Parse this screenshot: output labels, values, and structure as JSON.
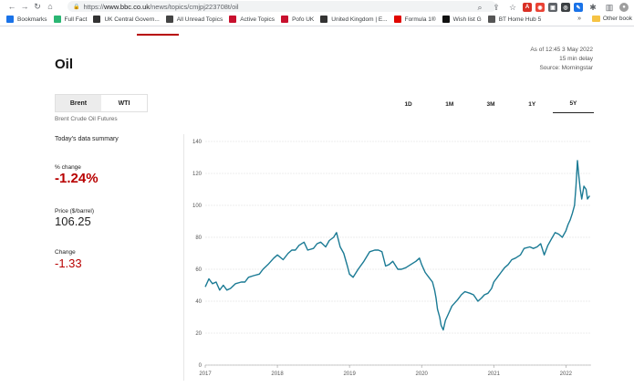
{
  "browser": {
    "url_prefix": "https://",
    "url_host": "www.bbc.co.uk",
    "url_path": "/news/topics/cmjpj223708t/oil",
    "bookmarks": [
      {
        "label": "Bookmarks",
        "color": "#1a73e8"
      },
      {
        "label": "Full Fact",
        "color": "#2bb673"
      },
      {
        "label": "UK Central Govern...",
        "color": "#333333"
      },
      {
        "label": "All Unread Topics",
        "color": "#444444"
      },
      {
        "label": "Active Topics",
        "color": "#c8102e"
      },
      {
        "label": "Pofo UK",
        "color": "#c8102e"
      },
      {
        "label": "United Kingdom | E...",
        "color": "#333333"
      },
      {
        "label": "Formula 1®",
        "color": "#e10600"
      },
      {
        "label": "Wish list G",
        "color": "#111111"
      },
      {
        "label": "BT Home Hub 5",
        "color": "#555555"
      }
    ],
    "more": "»",
    "other_bookmarks": "Other book"
  },
  "page": {
    "title": "Oil",
    "as_of": "As of 12:45 3 May 2022",
    "delay": "15 min delay",
    "source": "Source: Morningstar",
    "tabs": [
      "Brent",
      "WTI"
    ],
    "subtitle": "Brent Crude Oil Futures",
    "ranges": [
      "1D",
      "1M",
      "3M",
      "1Y",
      "5Y"
    ],
    "summary_heading": "Today's data summary",
    "pct_change_label": "% change",
    "pct_change_value": "-1.24%",
    "price_label": "Price ($/barrel)",
    "price_value": "106.25",
    "change_label": "Change",
    "change_value": "-1.33"
  },
  "colors": {
    "line": "#1a7a94",
    "negative": "#b80000",
    "accent": "#b80000"
  },
  "chart_data": {
    "type": "line",
    "title": "",
    "xlabel": "",
    "ylabel": "",
    "x_ticks": [
      "2017",
      "2018",
      "2019",
      "2020",
      "2021",
      "2022"
    ],
    "y_ticks": [
      0,
      20,
      40,
      60,
      80,
      100,
      120,
      140
    ],
    "ylim": [
      0,
      140
    ],
    "xlim": [
      2017.0,
      2022.35
    ],
    "grid": true,
    "series": [
      {
        "name": "",
        "x": [
          2017.0,
          2017.05,
          2017.1,
          2017.15,
          2017.2,
          2017.25,
          2017.3,
          2017.35,
          2017.42,
          2017.5,
          2017.55,
          2017.6,
          2017.67,
          2017.75,
          2017.8,
          2017.87,
          2017.95,
          2018.0,
          2018.08,
          2018.15,
          2018.2,
          2018.25,
          2018.3,
          2018.37,
          2018.42,
          2018.5,
          2018.55,
          2018.6,
          2018.67,
          2018.72,
          2018.78,
          2018.82,
          2018.87,
          2018.92,
          2018.97,
          2019.0,
          2019.05,
          2019.12,
          2019.2,
          2019.28,
          2019.35,
          2019.4,
          2019.45,
          2019.5,
          2019.55,
          2019.6,
          2019.67,
          2019.72,
          2019.78,
          2019.85,
          2019.92,
          2019.97,
          2020.0,
          2020.05,
          2020.1,
          2020.15,
          2020.18,
          2020.2,
          2020.22,
          2020.25,
          2020.27,
          2020.3,
          2020.33,
          2020.37,
          2020.42,
          2020.5,
          2020.55,
          2020.6,
          2020.67,
          2020.72,
          2020.78,
          2020.83,
          2020.87,
          2020.92,
          2020.97,
          2021.0,
          2021.05,
          2021.1,
          2021.15,
          2021.2,
          2021.25,
          2021.3,
          2021.37,
          2021.42,
          2021.5,
          2021.55,
          2021.6,
          2021.65,
          2021.7,
          2021.75,
          2021.8,
          2021.85,
          2021.9,
          2021.95,
          2022.0,
          2022.03,
          2022.06,
          2022.09,
          2022.12,
          2022.14,
          2022.16,
          2022.18,
          2022.2,
          2022.22,
          2022.25,
          2022.28,
          2022.3,
          2022.33
        ],
        "y": [
          49,
          54,
          51,
          52,
          47,
          50,
          47,
          48,
          51,
          52,
          52,
          55,
          56,
          57,
          60,
          63,
          67,
          69,
          66,
          70,
          72,
          72,
          75,
          77,
          72,
          73,
          76,
          77,
          74,
          78,
          80,
          83,
          74,
          70,
          62,
          57,
          55,
          60,
          65,
          71,
          72,
          72,
          71,
          62,
          63,
          65,
          60,
          60,
          61,
          63,
          65,
          67,
          63,
          58,
          55,
          52,
          47,
          42,
          35,
          30,
          25,
          22,
          28,
          32,
          37,
          41,
          44,
          46,
          45,
          44,
          40,
          42,
          44,
          45,
          48,
          52,
          55,
          58,
          61,
          63,
          66,
          67,
          69,
          73,
          74,
          73,
          74,
          76,
          69,
          75,
          79,
          83,
          82,
          80,
          84,
          88,
          91,
          95,
          100,
          112,
          128,
          118,
          110,
          104,
          112,
          110,
          104,
          106
        ]
      }
    ]
  }
}
